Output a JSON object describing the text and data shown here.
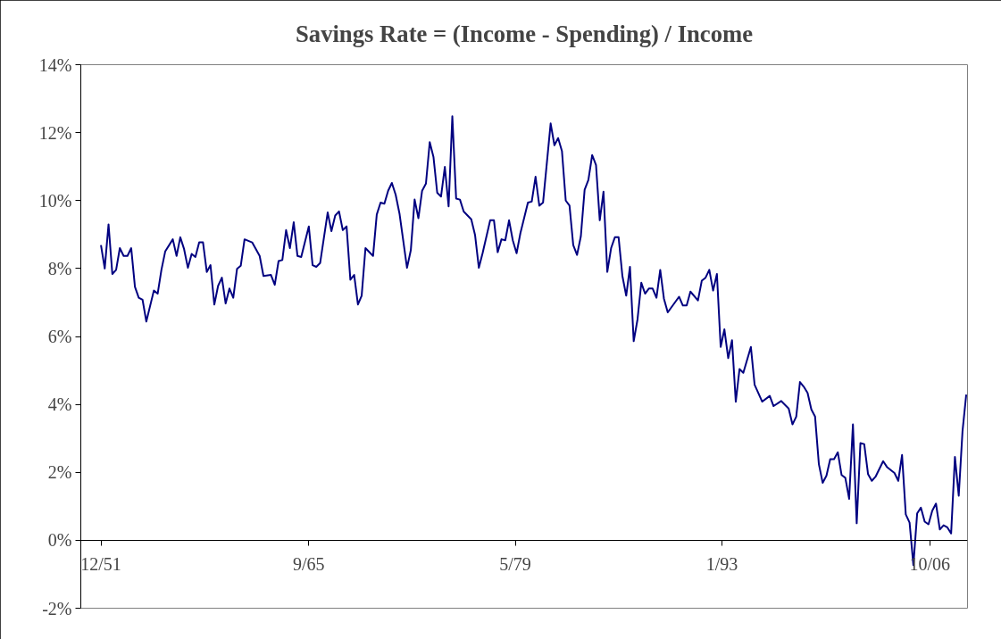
{
  "chart_data": {
    "type": "line",
    "title": "Savings Rate = (Income - Spending) / Income",
    "x": [
      "1951-12",
      "1952-03",
      "1952-06",
      "1952-09",
      "1952-12",
      "1953-03",
      "1953-06",
      "1953-09",
      "1953-12",
      "1954-03",
      "1954-06",
      "1954-09",
      "1954-12",
      "1955-06",
      "1955-09",
      "1955-12",
      "1956-03",
      "1956-09",
      "1956-12",
      "1957-03",
      "1957-06",
      "1957-09",
      "1957-12",
      "1958-03",
      "1958-06",
      "1958-09",
      "1958-12",
      "1959-03",
      "1959-06",
      "1959-09",
      "1959-12",
      "1960-03",
      "1960-06",
      "1960-09",
      "1960-12",
      "1961-03",
      "1961-06",
      "1961-12",
      "1962-06",
      "1962-09",
      "1963-03",
      "1963-06",
      "1963-09",
      "1963-12",
      "1964-03",
      "1964-06",
      "1964-09",
      "1964-12",
      "1965-03",
      "1965-09",
      "1965-12",
      "1966-03",
      "1966-06",
      "1966-12",
      "1967-03",
      "1967-06",
      "1967-09",
      "1967-12",
      "1968-03",
      "1968-06",
      "1968-09",
      "1968-12",
      "1969-03",
      "1969-06",
      "1969-12",
      "1970-03",
      "1970-06",
      "1970-09",
      "1970-12",
      "1971-03",
      "1971-06",
      "1971-09",
      "1972-03",
      "1972-06",
      "1972-09",
      "1972-12",
      "1973-03",
      "1973-06",
      "1973-09",
      "1973-12",
      "1974-03",
      "1974-06",
      "1974-09",
      "1974-12",
      "1975-03",
      "1975-06",
      "1975-09",
      "1975-12",
      "1976-06",
      "1976-09",
      "1976-12",
      "1977-03",
      "1977-09",
      "1977-12",
      "1978-03",
      "1978-06",
      "1978-09",
      "1978-12",
      "1979-03",
      "1979-06",
      "1979-09",
      "1980-03",
      "1980-06",
      "1980-09",
      "1980-12",
      "1981-03",
      "1981-09",
      "1981-12",
      "1982-03",
      "1982-06",
      "1982-09",
      "1982-12",
      "1983-03",
      "1983-06",
      "1983-09",
      "1983-12",
      "1984-03",
      "1984-06",
      "1984-09",
      "1984-12",
      "1985-03",
      "1985-06",
      "1985-09",
      "1985-12",
      "1986-03",
      "1986-06",
      "1986-09",
      "1986-12",
      "1987-03",
      "1987-06",
      "1987-09",
      "1987-12",
      "1988-03",
      "1988-06",
      "1988-09",
      "1988-12",
      "1989-03",
      "1989-06",
      "1990-03",
      "1990-06",
      "1990-09",
      "1990-12",
      "1991-06",
      "1991-09",
      "1991-12",
      "1992-03",
      "1992-06",
      "1992-09",
      "1992-12",
      "1993-03",
      "1993-06",
      "1993-09",
      "1993-12",
      "1994-03",
      "1994-06",
      "1994-12",
      "1995-03",
      "1995-09",
      "1996-03",
      "1996-06",
      "1996-12",
      "1997-06",
      "1997-09",
      "1997-12",
      "1998-03",
      "1998-06",
      "1998-09",
      "1998-12",
      "1999-03",
      "1999-06",
      "1999-09",
      "1999-12",
      "2000-03",
      "2000-06",
      "2000-09",
      "2000-12",
      "2001-03",
      "2001-06",
      "2001-09",
      "2001-12",
      "2002-03",
      "2002-06",
      "2002-09",
      "2002-12",
      "2003-03",
      "2003-09",
      "2003-12",
      "2004-06",
      "2004-09",
      "2004-12",
      "2005-03",
      "2005-06",
      "2005-09",
      "2005-12",
      "2006-03",
      "2006-06",
      "2006-09",
      "2006-12",
      "2007-03",
      "2007-06",
      "2007-09",
      "2007-12",
      "2008-03",
      "2008-06",
      "2008-09",
      "2008-12",
      "2009-03"
    ],
    "series": [
      {
        "color": "#000080",
        "values": [
          8.69,
          8.0,
          9.3,
          7.84,
          7.96,
          8.6,
          8.37,
          8.37,
          8.6,
          7.46,
          7.14,
          7.08,
          6.44,
          7.35,
          7.26,
          7.96,
          8.5,
          8.86,
          8.37,
          8.92,
          8.57,
          8.02,
          8.43,
          8.34,
          8.77,
          8.77,
          7.9,
          8.1,
          6.94,
          7.49,
          7.73,
          6.97,
          7.41,
          7.14,
          7.99,
          8.08,
          8.86,
          8.77,
          8.37,
          7.78,
          7.81,
          7.52,
          8.22,
          8.25,
          9.13,
          8.6,
          9.36,
          8.37,
          8.34,
          9.24,
          8.1,
          8.05,
          8.16,
          9.65,
          9.1,
          9.56,
          9.68,
          9.13,
          9.24,
          7.67,
          7.81,
          6.94,
          7.2,
          8.6,
          8.37,
          9.59,
          9.94,
          9.91,
          10.29,
          10.52,
          10.17,
          9.62,
          8.02,
          8.54,
          10.03,
          9.48,
          10.29,
          10.5,
          11.72,
          11.28,
          10.23,
          10.12,
          10.99,
          9.83,
          12.48,
          10.06,
          10.03,
          9.68,
          9.45,
          8.98,
          8.02,
          8.45,
          9.42,
          9.42,
          8.48,
          8.86,
          8.83,
          9.42,
          8.83,
          8.45,
          9.04,
          9.94,
          9.97,
          10.7,
          9.85,
          9.94,
          12.27,
          11.63,
          11.84,
          11.46,
          10.0,
          9.85,
          8.69,
          8.4,
          8.95,
          10.32,
          10.61,
          11.34,
          11.05,
          9.42,
          10.26,
          7.9,
          8.6,
          8.92,
          8.92,
          7.78,
          7.2,
          8.05,
          5.86,
          6.5,
          7.58,
          7.26,
          7.41,
          7.41,
          7.14,
          7.96,
          7.11,
          6.71,
          7.17,
          6.91,
          6.91,
          7.32,
          7.06,
          7.64,
          7.73,
          7.96,
          7.35,
          7.84,
          5.69,
          6.21,
          5.36,
          5.89,
          4.08,
          5.04,
          4.93,
          5.69,
          4.58,
          4.08,
          4.25,
          3.95,
          4.1,
          3.88,
          3.41,
          3.64,
          4.66,
          4.52,
          4.34,
          3.85,
          3.64,
          2.24,
          1.69,
          1.9,
          2.39,
          2.39,
          2.59,
          1.92,
          1.84,
          1.22,
          3.41,
          0.5,
          2.86,
          2.83,
          1.95,
          1.75,
          1.87,
          2.33,
          2.16,
          1.98,
          1.75,
          2.51,
          0.76,
          0.52,
          -0.73,
          0.79,
          0.96,
          0.55,
          0.47,
          0.87,
          1.08,
          0.32,
          0.44,
          0.38,
          0.2,
          2.45,
          1.31,
          3.21,
          4.29
        ]
      }
    ],
    "xlim": [
      "1950-08",
      "2009-04"
    ],
    "xticks": [
      {
        "value": "1951-12",
        "label": "12/51"
      },
      {
        "value": "1965-09",
        "label": "9/65"
      },
      {
        "value": "1979-05",
        "label": "5/79"
      },
      {
        "value": "1993-01",
        "label": "1/93"
      },
      {
        "value": "2006-10",
        "label": "10/06"
      }
    ],
    "ylim": [
      -2,
      14
    ],
    "yticks": [
      {
        "value": -2,
        "label": "-2%"
      },
      {
        "value": 0,
        "label": "0%"
      },
      {
        "value": 2,
        "label": "2%"
      },
      {
        "value": 4,
        "label": "4%"
      },
      {
        "value": 6,
        "label": "6%"
      },
      {
        "value": 8,
        "label": "8%"
      },
      {
        "value": 10,
        "label": "10%"
      },
      {
        "value": 12,
        "label": "12%"
      },
      {
        "value": 14,
        "label": "14%"
      }
    ],
    "grid": false,
    "marker": "none",
    "line_style": "solid"
  }
}
